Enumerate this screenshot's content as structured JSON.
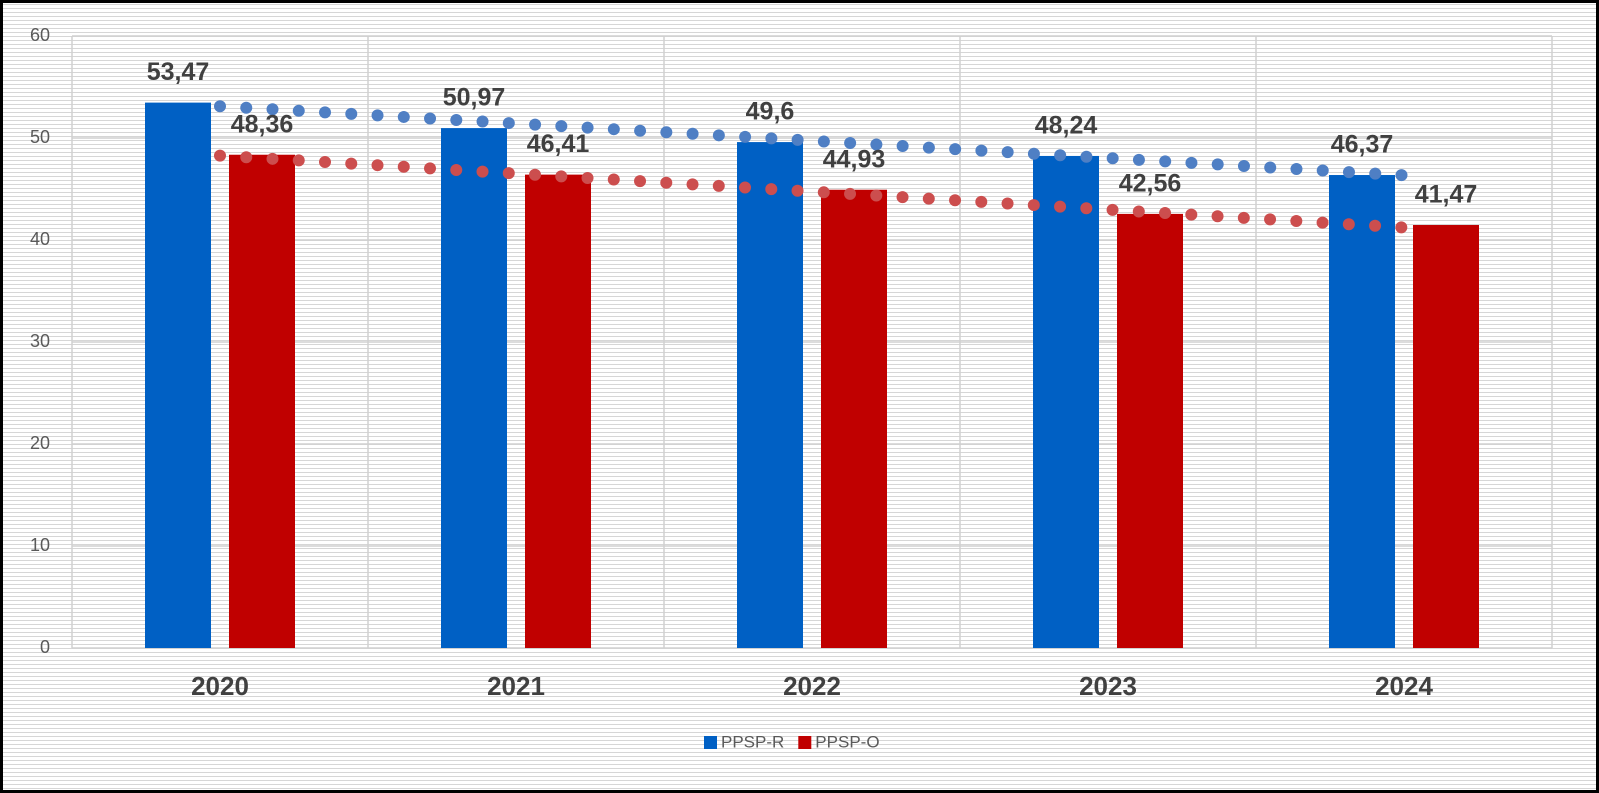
{
  "chart_data": {
    "type": "bar",
    "categories": [
      "2020",
      "2021",
      "2022",
      "2023",
      "2024"
    ],
    "series": [
      {
        "name": "PPSP-R",
        "color": "#0060c4",
        "values": [
          53.47,
          50.97,
          49.6,
          48.24,
          46.37
        ],
        "value_labels": [
          "53,47",
          "50,97",
          "49,6",
          "48,24",
          "46,37"
        ],
        "trendline_color": "#4f7fc4"
      },
      {
        "name": "PPSP-O",
        "color": "#c00000",
        "values": [
          48.36,
          46.41,
          44.93,
          42.56,
          41.47
        ],
        "value_labels": [
          "48,36",
          "46,41",
          "44,93",
          "42,56",
          "41,47"
        ],
        "trendline_color": "#cc4e4e"
      }
    ],
    "ylim": [
      0,
      60
    ],
    "yticks": [
      0,
      10,
      20,
      30,
      40,
      50,
      60
    ],
    "grid": true,
    "trendline": "linear",
    "legend": "bottom"
  }
}
